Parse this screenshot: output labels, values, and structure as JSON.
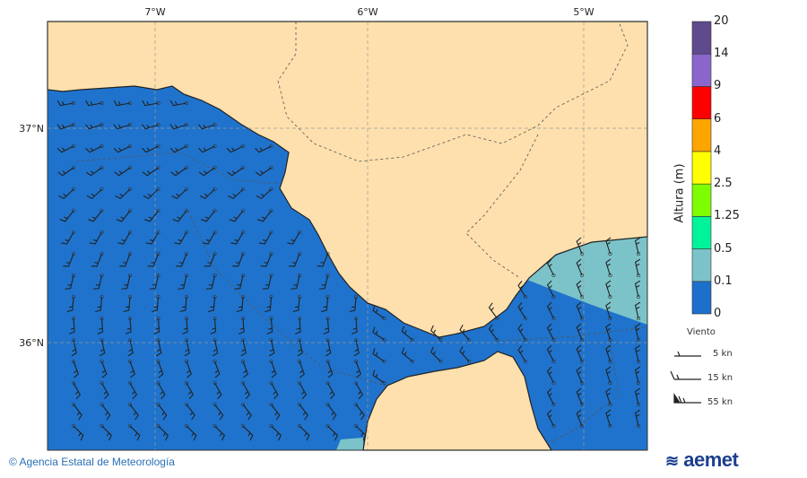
{
  "map": {
    "lon_ticks": [
      "7°W",
      "6°W",
      "5°W"
    ],
    "lat_ticks": [
      "37°N",
      "36°N"
    ],
    "colors": {
      "sea": "#1f73cc",
      "land": "#fde0ad",
      "coast": "#222222"
    }
  },
  "colorbar": {
    "title": "Altura (m)",
    "labels": [
      "0",
      "0.1",
      "0.5",
      "1.25",
      "2.5",
      "4",
      "6",
      "9",
      "14",
      "20"
    ],
    "colors": [
      "#1c6fcb",
      "#7bc3c9",
      "#00f39a",
      "#7efc00",
      "#ffff00",
      "#ffa500",
      "#ff0000",
      "#8a66cc",
      "#5e4a8d"
    ]
  },
  "wind_legend": {
    "title": "Viento",
    "items": [
      "5 kn",
      "15 kn",
      "55 kn"
    ]
  },
  "footer": {
    "copyright": "© Agencia Estatal de Meteorología",
    "logo": "aemet"
  }
}
